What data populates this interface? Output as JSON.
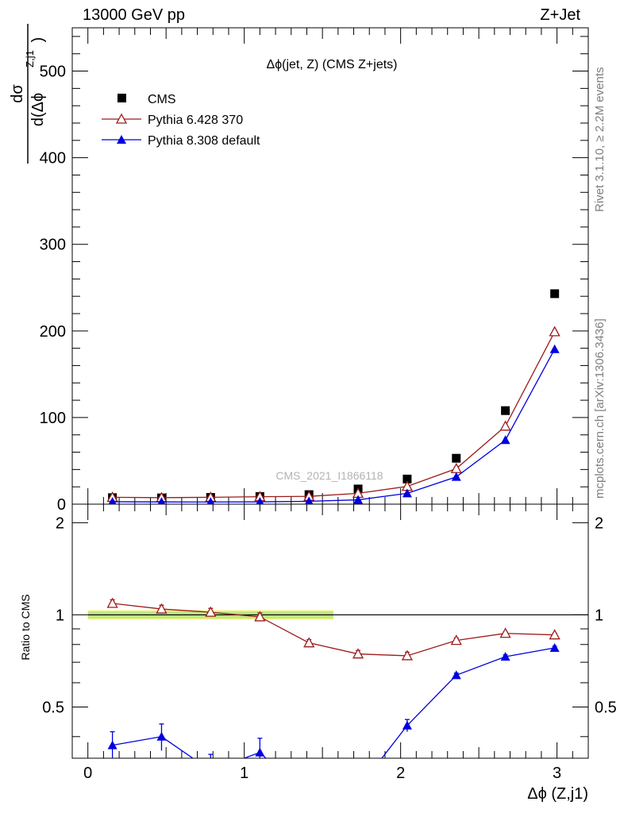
{
  "header": {
    "left": "13000 GeV pp",
    "right": "Z+Jet"
  },
  "side": {
    "rivet": "Rivet 3.1.10, ≥ 2.2M events",
    "mcplots": "mcplots.cern.ch [arXiv:1306.3436]"
  },
  "chart_data": [
    {
      "type": "scatter",
      "title": "Δϕ(jet, Z) (CMS Z+jets)",
      "watermark": "CMS_2021_I1866118",
      "ylabel": {
        "num": "dσ",
        "den": "d(Δϕ",
        "sup": "Z,j1",
        "close": ")"
      },
      "xlim": [
        -0.1,
        3.2
      ],
      "ylim": [
        0,
        550
      ],
      "yticks": [
        0,
        100,
        200,
        300,
        400,
        500
      ],
      "grid": false,
      "legend_position": "top-left",
      "series": [
        {
          "name": "CMS",
          "color": "#000000",
          "marker": "square",
          "x": [
            0.157,
            0.471,
            0.785,
            1.1,
            1.414,
            1.728,
            2.042,
            2.356,
            2.67,
            2.985
          ],
          "y": [
            7.5,
            7.2,
            7.8,
            8.8,
            11.0,
            17.5,
            29.0,
            53.0,
            108.0,
            243.0
          ]
        },
        {
          "name": "Pythia 6.428 370",
          "color": "#9b1b1b",
          "marker": "triangle-open",
          "x": [
            0.157,
            0.471,
            0.785,
            1.1,
            1.414,
            1.728,
            2.042,
            2.356,
            2.67,
            2.985
          ],
          "y": [
            7.9,
            7.5,
            7.9,
            8.6,
            9.0,
            12.5,
            20.5,
            41.0,
            90.0,
            199.0
          ]
        },
        {
          "name": "Pythia 8.308 default",
          "color": "#0000e0",
          "marker": "triangle-filled",
          "x": [
            0.157,
            0.471,
            0.785,
            1.1,
            1.414,
            1.728,
            2.042,
            2.356,
            2.67,
            2.985
          ],
          "y": [
            2.8,
            2.6,
            2.5,
            2.7,
            3.3,
            5.0,
            12.5,
            31.5,
            74.0,
            179.0
          ]
        }
      ]
    },
    {
      "type": "line",
      "ylabel": "Ratio to CMS",
      "xlabel": "Δϕ (Z,j1)",
      "xlim": [
        -0.1,
        3.2
      ],
      "ylim": [
        0.34,
        2.3
      ],
      "yticks": [
        0.5,
        1,
        2
      ],
      "xticks": [
        0,
        1,
        2,
        3
      ],
      "reference_band": {
        "y": 1.0,
        "low": 0.965,
        "high": 1.035,
        "x_end": 1.57
      },
      "series": [
        {
          "name": "Pythia 6.428 370",
          "color": "#9b1b1b",
          "marker": "triangle-open",
          "x": [
            0.157,
            0.471,
            0.785,
            1.1,
            1.414,
            1.728,
            2.042,
            2.356,
            2.67,
            2.985
          ],
          "y": [
            1.09,
            1.045,
            1.02,
            0.985,
            0.81,
            0.745,
            0.735,
            0.825,
            0.87,
            0.86
          ],
          "err": [
            0.03,
            0.03,
            0.03,
            0.03,
            0.02,
            0.02,
            0.02,
            0.015,
            0.01,
            0.01
          ]
        },
        {
          "name": "Pythia 8.308 default",
          "color": "#0000e0",
          "marker": "triangle-filled",
          "x": [
            0.157,
            0.471,
            0.785,
            1.1,
            1.414,
            1.728,
            2.042,
            2.356,
            2.67,
            2.985
          ],
          "y": [
            0.375,
            0.4,
            0.31,
            0.355,
            0.25,
            0.27,
            0.435,
            0.635,
            0.73,
            0.78
          ],
          "err": [
            0.04,
            0.04,
            0.04,
            0.04,
            0.03,
            0.03,
            0.02,
            0.01,
            0.01,
            0.01
          ]
        }
      ]
    }
  ]
}
